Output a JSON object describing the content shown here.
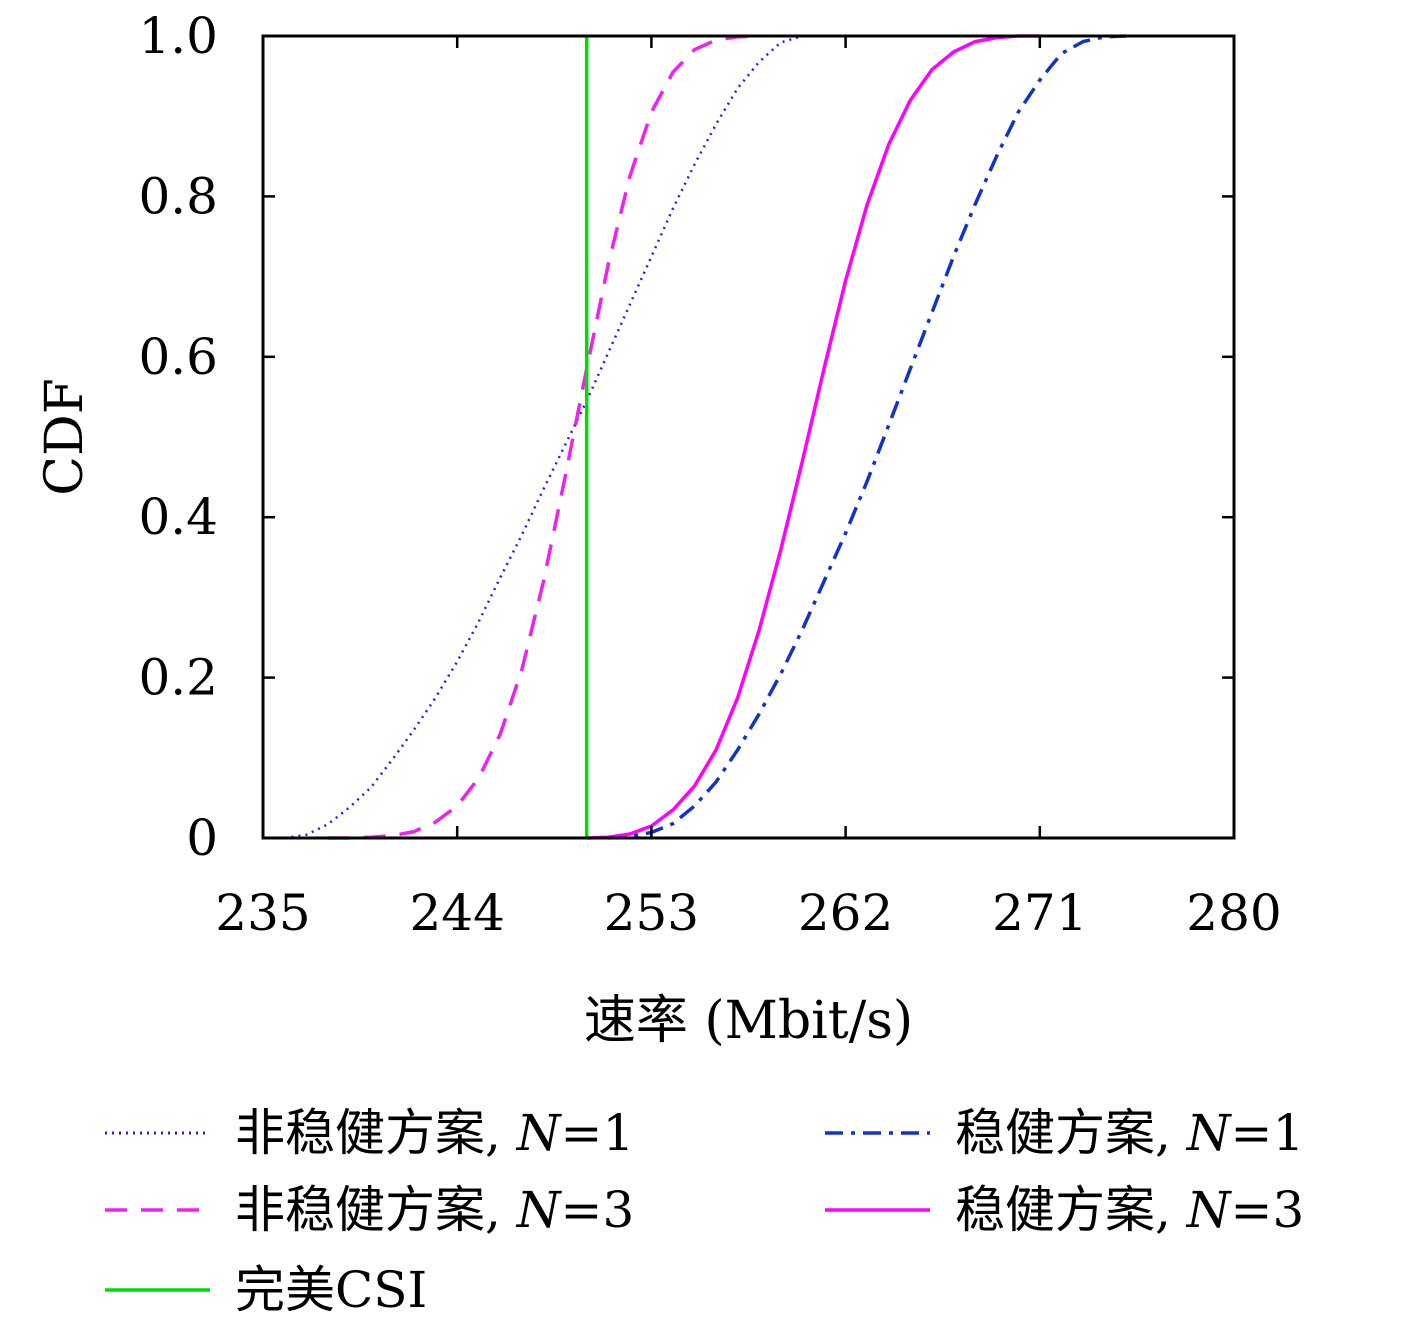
{
  "chart_data": {
    "type": "line",
    "title": "",
    "xlabel": "速率 (Mbit/s)",
    "ylabel": "CDF",
    "xlim": [
      235,
      280
    ],
    "ylim": [
      0,
      1
    ],
    "x_ticks": [
      235,
      244,
      253,
      262,
      271,
      280
    ],
    "x_tick_labels": [
      "235",
      "244",
      "253",
      "262",
      "271",
      "280"
    ],
    "y_ticks": [
      0,
      0.2,
      0.4,
      0.6,
      0.8,
      1.0
    ],
    "y_tick_labels": [
      "0",
      "0.2",
      "0.4",
      "0.6",
      "0.8",
      "1.0"
    ],
    "grid": false,
    "legend_position": "bottom, two columns",
    "series": [
      {
        "name": "非稳健方案, N=1",
        "label_text": "非稳健方案, ",
        "label_var": "N",
        "label_eq": "=1",
        "color": "#2222dd",
        "style": "dotted",
        "x": [
          236.0,
          237.0,
          238.0,
          239.0,
          240.0,
          241.0,
          242.0,
          243.0,
          244.0,
          245.0,
          246.0,
          247.0,
          248.0,
          249.0,
          250.0,
          251.0,
          252.0,
          253.0,
          254.0,
          255.0,
          256.0,
          257.0,
          258.0,
          259.0,
          260.0
        ],
        "y": [
          0.0,
          0.004,
          0.017,
          0.038,
          0.063,
          0.098,
          0.135,
          0.175,
          0.22,
          0.27,
          0.325,
          0.378,
          0.435,
          0.49,
          0.545,
          0.605,
          0.665,
          0.725,
          0.785,
          0.84,
          0.89,
          0.935,
          0.968,
          0.992,
          1.0
        ]
      },
      {
        "name": "稳健方案, N=1",
        "label_text": "稳健方案, ",
        "label_var": "N",
        "label_eq": "=1",
        "color": "#1133cc",
        "style": "dashdot",
        "x": [
          251.0,
          252.0,
          253.0,
          254.0,
          255.0,
          256.0,
          257.0,
          258.0,
          259.0,
          260.0,
          261.0,
          262.0,
          263.0,
          264.0,
          265.0,
          266.0,
          267.0,
          268.0,
          269.0,
          270.0,
          271.0,
          272.0,
          273.0,
          274.0,
          275.0
        ],
        "y": [
          0.0,
          0.002,
          0.007,
          0.018,
          0.04,
          0.07,
          0.11,
          0.155,
          0.205,
          0.26,
          0.32,
          0.38,
          0.445,
          0.515,
          0.585,
          0.655,
          0.725,
          0.79,
          0.85,
          0.905,
          0.945,
          0.978,
          0.993,
          0.999,
          1.0
        ]
      },
      {
        "name": "非稳健方案, N=3",
        "label_text": "非稳健方案, ",
        "label_var": "N",
        "label_eq": "=3",
        "color": "#ee22ee",
        "style": "dashed",
        "x": [
          238.0,
          239.0,
          240.0,
          241.0,
          242.0,
          243.0,
          244.0,
          245.0,
          246.0,
          247.0,
          248.0,
          249.0,
          250.0,
          251.0,
          252.0,
          253.0,
          254.0,
          255.0,
          256.0,
          257.0,
          258.0
        ],
        "y": [
          0.0,
          0.0,
          0.001,
          0.003,
          0.008,
          0.02,
          0.04,
          0.075,
          0.13,
          0.21,
          0.32,
          0.45,
          0.585,
          0.715,
          0.825,
          0.905,
          0.955,
          0.983,
          0.995,
          0.999,
          1.0
        ]
      },
      {
        "name": "稳健方案, N=3",
        "label_text": "稳健方案, ",
        "label_var": "N",
        "label_eq": "=3",
        "color": "#ff00ff",
        "style": "solid",
        "x": [
          250.0,
          251.0,
          252.0,
          253.0,
          254.0,
          255.0,
          256.0,
          257.0,
          258.0,
          259.0,
          260.0,
          261.0,
          262.0,
          263.0,
          264.0,
          265.0,
          266.0,
          267.0,
          268.0,
          269.0,
          270.0,
          271.0
        ],
        "y": [
          0.0,
          0.001,
          0.005,
          0.015,
          0.035,
          0.065,
          0.11,
          0.175,
          0.26,
          0.36,
          0.47,
          0.585,
          0.695,
          0.79,
          0.865,
          0.92,
          0.958,
          0.98,
          0.993,
          0.998,
          1.0,
          1.0
        ]
      },
      {
        "name": "完美CSI",
        "label_text": "完美CSI",
        "label_var": "",
        "label_eq": "",
        "color": "#00dd00",
        "style": "solid",
        "x": [
          250.0,
          250.0
        ],
        "y": [
          0.0,
          1.0
        ]
      }
    ]
  }
}
